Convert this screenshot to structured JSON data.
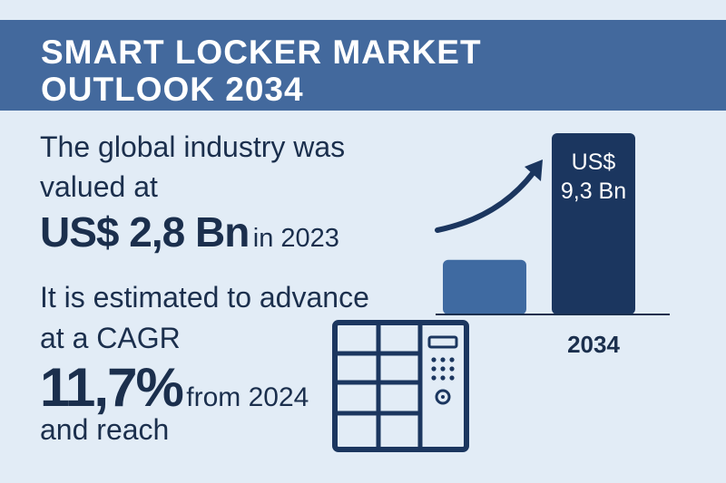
{
  "title": {
    "line1": "SMART LOCKER MARKET",
    "line2": "OUTLOOK 2034"
  },
  "text": {
    "line1": "The global industry was",
    "line2": "valued at",
    "value_big": "US$ 2,8 Bn",
    "value_year": "in 2023",
    "line4": "It is estimated to advance",
    "line5": "at a CAGR",
    "cagr_big": "11,7%",
    "cagr_from": "from 2024",
    "line7": "and reach"
  },
  "colors": {
    "banner": "#43699d",
    "background": "#e2ecf6",
    "text": "#1b2f4d",
    "bar_2023": "#3f6aa1",
    "bar_2034": "#1b365f"
  },
  "icons": [
    "growth-arrow-icon",
    "locker-icon",
    "keypad-icon"
  ],
  "chart_data": {
    "type": "bar",
    "categories": [
      "",
      "2034"
    ],
    "values": [
      2.8,
      9.3
    ],
    "data_labels": [
      "",
      "US$\n9,3 Bn"
    ],
    "title": "",
    "xlabel": "",
    "ylabel": "",
    "grid": false
  }
}
